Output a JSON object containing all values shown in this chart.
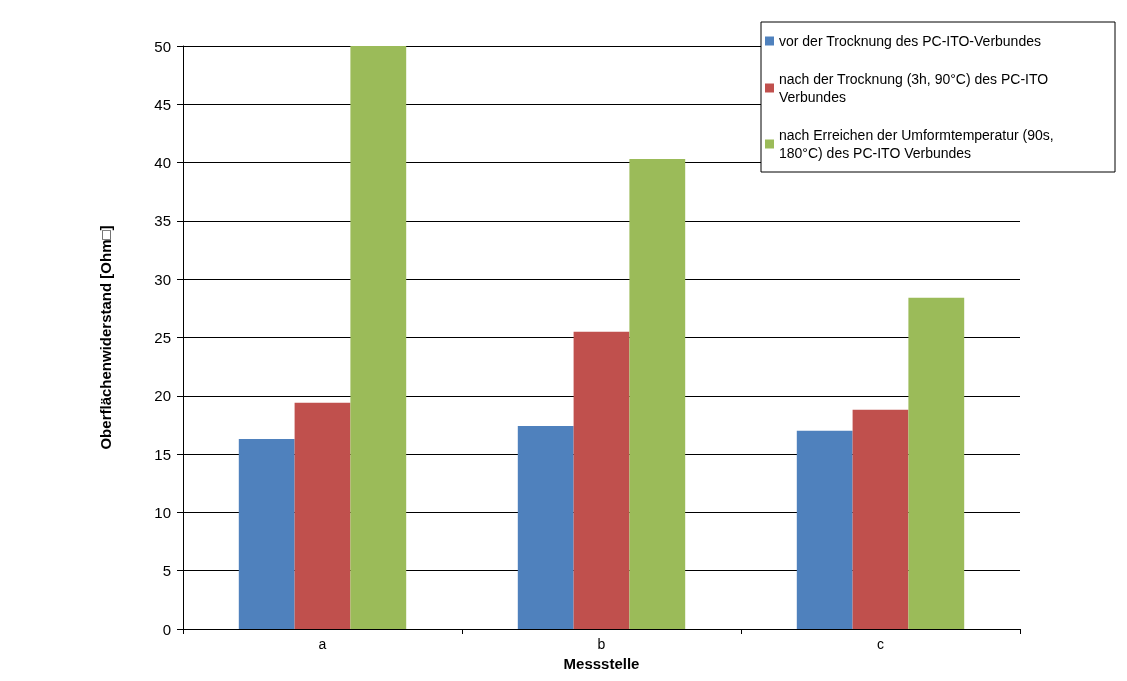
{
  "chart_data": {
    "type": "bar",
    "xlabel": "Messstelle",
    "ylabel": "Oberflächenwiderstand [Ohm□]",
    "categories": [
      "a",
      "b",
      "c"
    ],
    "series": [
      {
        "name": "vor der Trocknung des PC-ITO-Verbundes",
        "color": "#4f81bd",
        "values": [
          16.3,
          17.4,
          17.0
        ]
      },
      {
        "name": "nach der Trocknung (3h, 90°C) des PC-ITO Verbundes",
        "color": "#c0504d",
        "values": [
          19.4,
          25.5,
          18.8
        ]
      },
      {
        "name": "nach Erreichen der Umformtemperatur (90s, 180°C) des PC-ITO Verbundes",
        "color": "#9bbb59",
        "values": [
          50,
          40.3,
          28.4
        ]
      }
    ],
    "ylim": [
      0,
      50
    ],
    "yticks": [
      0,
      5,
      10,
      15,
      20,
      25,
      30,
      35,
      40,
      45,
      50
    ],
    "grid": "y",
    "legend": "top right"
  }
}
